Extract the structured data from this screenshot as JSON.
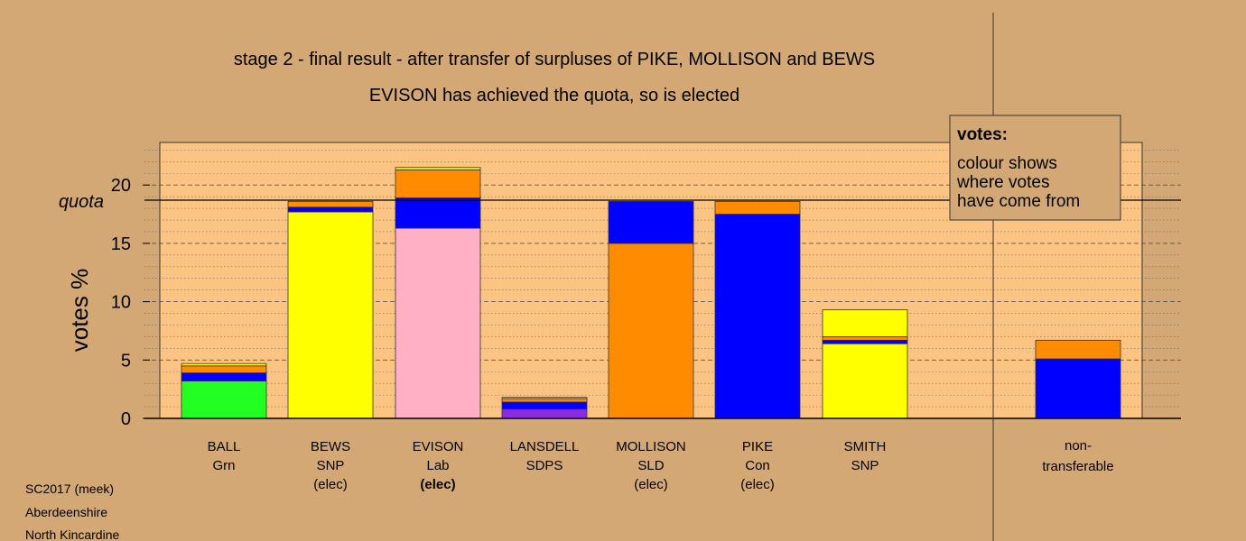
{
  "chart_data": {
    "type": "bar",
    "stacked": true,
    "title": "stage 2 - final result - after transfer of surpluses of PIKE, MOLLISON and BEWS",
    "subtitle": "EVISON has achieved the quota, so is elected",
    "ylabel": "votes %",
    "ylim": [
      0,
      23.5
    ],
    "yticks": [
      0,
      5,
      10,
      15,
      20
    ],
    "quota": 18.7,
    "quota_label": "quota",
    "grid": true,
    "candidates": [
      {
        "name": "BALL",
        "party": "Grn",
        "status": "",
        "segments": [
          {
            "color": "#22ff22",
            "value": 3.2
          },
          {
            "color": "#0000ff",
            "value": 0.7
          },
          {
            "color": "#ff8c00",
            "value": 0.6
          },
          {
            "color": "#ffff00",
            "value": 0.2
          }
        ]
      },
      {
        "name": "BEWS",
        "party": "SNP",
        "status": "(elec)",
        "segments": [
          {
            "color": "#ffff00",
            "value": 17.7
          },
          {
            "color": "#0000ff",
            "value": 0.4
          },
          {
            "color": "#ff8c00",
            "value": 0.5
          }
        ]
      },
      {
        "name": "EVISON",
        "party": "Lab",
        "status": "(elec)",
        "status_bold": true,
        "segments": [
          {
            "color": "#ffb0c4",
            "value": 16.3
          },
          {
            "color": "#0000ff",
            "value": 2.6
          },
          {
            "color": "#ff8c00",
            "value": 2.4
          },
          {
            "color": "#ffff00",
            "value": 0.2
          }
        ]
      },
      {
        "name": "LANSDELL",
        "party": "SDPS",
        "status": "",
        "segments": [
          {
            "color": "#8a2be2",
            "value": 0.8
          },
          {
            "color": "#0000ff",
            "value": 0.6
          },
          {
            "color": "#ff8c00",
            "value": 0.3
          },
          {
            "color": "#ffff00",
            "value": 0.1
          }
        ]
      },
      {
        "name": "MOLLISON",
        "party": "SLD",
        "status": "(elec)",
        "segments": [
          {
            "color": "#ff8c00",
            "value": 15.0
          },
          {
            "color": "#0000ff",
            "value": 3.6
          }
        ]
      },
      {
        "name": "PIKE",
        "party": "Con",
        "status": "(elec)",
        "segments": [
          {
            "color": "#0000ff",
            "value": 17.5
          },
          {
            "color": "#ff8c00",
            "value": 1.1
          }
        ]
      },
      {
        "name": "SMITH",
        "party": "SNP",
        "status": "",
        "segments": [
          {
            "color": "#ffff00",
            "value": 6.4
          },
          {
            "color": "#0000ff",
            "value": 0.3
          },
          {
            "color": "#ff8c00",
            "value": 0.3
          },
          {
            "color": "#ffff00",
            "value": 2.3
          }
        ]
      }
    ],
    "non_transferable": {
      "label_line1": "non-",
      "label_line2": "transferable",
      "segments": [
        {
          "color": "#0000ff",
          "value": 5.1
        },
        {
          "color": "#ff8c00",
          "value": 1.6
        }
      ]
    },
    "legend": {
      "title": "votes:",
      "lines": [
        "colour shows",
        "where votes",
        "have come from"
      ]
    }
  },
  "footer": [
    "SC2017 (meek)",
    "Aberdeenshire",
    "North Kincardine"
  ],
  "colors": {
    "background": "#d3a874",
    "plot_area": "#fcc483"
  }
}
